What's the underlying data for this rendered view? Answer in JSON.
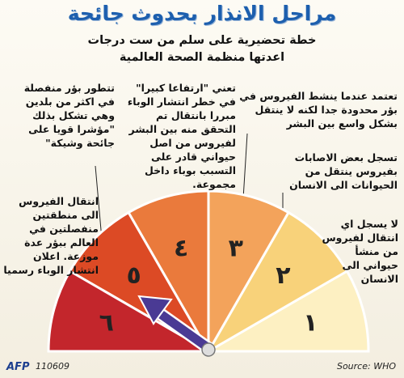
{
  "title": "مراحل الانذار بحدوث جائحة",
  "subtitle": [
    "خطة تحضيرية على سلم من ست درجات",
    "اعدتها منظمة الصحة العالمية"
  ],
  "phases": [
    {
      "number": "١",
      "description": "لا يسجل اي انتقال لفيروس من منشأ حيواني الى الانسان"
    },
    {
      "number": "٢",
      "description": "تسجل بعض الاصابات بفيروس ينتقل من الحيوانات الى الانسان"
    },
    {
      "number": "٣",
      "description": "تعتمد عندما ينشط الفيروس في بؤر محدودة جدا لكنه لا ينتقل بشكل واسع بين البشر"
    },
    {
      "number": "٤",
      "description": "تعني \"ارتفاعا كبيرا\" في خطر انتشار الوباء مبررا بانتقال تم التحقق منه بين البشر لفيروس من اصل حيواني قادر على التسبب بوباء داخل مجموعة."
    },
    {
      "number": "٥",
      "description": "تتطور بؤر منفصلة في اكثر من بلدين وهي تشكل بذلك \"مؤشرا قويا على جائحة وشيكة\""
    },
    {
      "number": "٦",
      "description": "انتقال الفيروس الى منطقتين منفصلتين في العالم ببؤر عدة موزعة. اعلان انتشار الوباء رسميا"
    }
  ],
  "footer": {
    "agency": "AFP",
    "code": "110609",
    "source": "Source: WHO"
  }
}
